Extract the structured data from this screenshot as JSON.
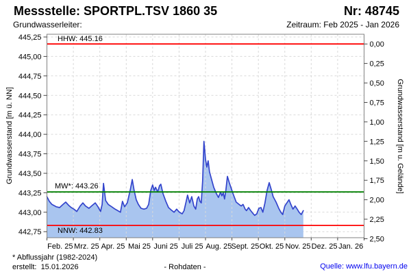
{
  "header": {
    "station_label": "Messstelle: SPORTPL.TSV 1860 35",
    "number_label": "Nr: 48745",
    "aquifer_label": "Grundwasserleiter:",
    "period_label": "Zeitraum: Feb 2025 - Jan 2026"
  },
  "footer": {
    "footnote": "* Abflussjahr (1982-2024)",
    "created": "erstellt:  15.01.2026",
    "center_note": "- Rohdaten -",
    "source": "Quelle: www.lfu.bayern.de"
  },
  "colors": {
    "area_fill": "#a9c5ef",
    "line": "#3344cc",
    "grid": "#d9d9d9",
    "border": "#808080",
    "tick": "#444444",
    "hhw_nnw": "#ff0000",
    "mw": "#008000",
    "source_link": "#0000ee"
  },
  "chart_data": {
    "type": "area",
    "title": "",
    "ylabel_left": "Grundwasserstand [m ü. NN]",
    "ylabel_right": "Grundwasserstand [m u. Gelände]",
    "x_labels": [
      "Feb. 25",
      "Mrz. 25",
      "Apr. 25",
      "Mai 25",
      "Juni 25",
      "Juli 25",
      "Aug. 25",
      "Sept. 25",
      "Okt. 25",
      "Nov. 25",
      "Dez. 25",
      "Jan. 26"
    ],
    "y_left_tick_values": [
      445.25,
      445.0,
      444.75,
      444.5,
      444.25,
      444.0,
      443.75,
      443.5,
      443.25,
      443.0,
      442.75
    ],
    "y_left_tick_labels": [
      "445,25",
      "445,00",
      "444,75",
      "444,50",
      "444,25",
      "444,00",
      "443,75",
      "443,50",
      "443,25",
      "443,00",
      "442,75"
    ],
    "y_right_tick_values": [
      0.0,
      0.25,
      0.5,
      0.75,
      1.0,
      1.25,
      1.5,
      1.75,
      2.0,
      2.25,
      2.5
    ],
    "y_right_tick_labels": [
      "0,00",
      "0,25",
      "0,50",
      "0,75",
      "1,00",
      "1,25",
      "1,50",
      "1,75",
      "2,00",
      "2,25",
      "2,50"
    ],
    "ylim_left": [
      442.67,
      445.29
    ],
    "ground_level_m_nn": 445.16,
    "grid": "dashed",
    "reference_lines": [
      {
        "name": "HHW",
        "label": "HHW: 445.16",
        "value": 445.16,
        "color": "#ff0000"
      },
      {
        "name": "MW",
        "label": "MW*: 443.26",
        "value": 443.26,
        "color": "#008000"
      },
      {
        "name": "NNW",
        "label": "NNW: 442.83",
        "value": 442.83,
        "color": "#ff0000"
      }
    ],
    "series": [
      {
        "name": "Grundwasserstand Rohdaten",
        "x_unit": "months_since_feb_2025",
        "points": [
          [
            0.0,
            443.2
          ],
          [
            0.09,
            443.14
          ],
          [
            0.19,
            443.1
          ],
          [
            0.35,
            443.07
          ],
          [
            0.48,
            443.06
          ],
          [
            0.61,
            443.1
          ],
          [
            0.71,
            443.13
          ],
          [
            0.82,
            443.09
          ],
          [
            0.92,
            443.06
          ],
          [
            1.02,
            443.04
          ],
          [
            1.13,
            443.01
          ],
          [
            1.26,
            443.08
          ],
          [
            1.36,
            443.12
          ],
          [
            1.46,
            443.08
          ],
          [
            1.59,
            443.05
          ],
          [
            1.72,
            443.09
          ],
          [
            1.83,
            443.12
          ],
          [
            1.93,
            443.07
          ],
          [
            2.03,
            443.01
          ],
          [
            2.09,
            443.1
          ],
          [
            2.14,
            443.37
          ],
          [
            2.22,
            443.15
          ],
          [
            2.32,
            443.1
          ],
          [
            2.45,
            443.07
          ],
          [
            2.58,
            443.04
          ],
          [
            2.68,
            443.02
          ],
          [
            2.78,
            443.0
          ],
          [
            2.86,
            443.14
          ],
          [
            2.94,
            443.07
          ],
          [
            3.04,
            443.12
          ],
          [
            3.15,
            443.28
          ],
          [
            3.23,
            443.42
          ],
          [
            3.3,
            443.28
          ],
          [
            3.38,
            443.16
          ],
          [
            3.46,
            443.1
          ],
          [
            3.56,
            443.05
          ],
          [
            3.67,
            443.04
          ],
          [
            3.77,
            443.05
          ],
          [
            3.85,
            443.1
          ],
          [
            3.93,
            443.28
          ],
          [
            4.0,
            443.35
          ],
          [
            4.06,
            443.28
          ],
          [
            4.11,
            443.32
          ],
          [
            4.19,
            443.26
          ],
          [
            4.26,
            443.34
          ],
          [
            4.31,
            443.36
          ],
          [
            4.39,
            443.24
          ],
          [
            4.5,
            443.14
          ],
          [
            4.6,
            443.06
          ],
          [
            4.7,
            443.03
          ],
          [
            4.81,
            443.0
          ],
          [
            4.91,
            443.04
          ],
          [
            5.01,
            443.0
          ],
          [
            5.12,
            442.98
          ],
          [
            5.19,
            443.02
          ],
          [
            5.27,
            443.14
          ],
          [
            5.32,
            443.22
          ],
          [
            5.4,
            443.12
          ],
          [
            5.48,
            443.2
          ],
          [
            5.56,
            443.08
          ],
          [
            5.63,
            443.04
          ],
          [
            5.69,
            443.17
          ],
          [
            5.74,
            443.2
          ],
          [
            5.79,
            443.14
          ],
          [
            5.84,
            443.12
          ],
          [
            5.89,
            443.4
          ],
          [
            5.94,
            443.91
          ],
          [
            6.0,
            443.68
          ],
          [
            6.05,
            443.58
          ],
          [
            6.1,
            443.66
          ],
          [
            6.15,
            443.52
          ],
          [
            6.23,
            443.42
          ],
          [
            6.31,
            443.32
          ],
          [
            6.41,
            443.24
          ],
          [
            6.49,
            443.19
          ],
          [
            6.57,
            443.26
          ],
          [
            6.62,
            443.21
          ],
          [
            6.67,
            443.25
          ],
          [
            6.72,
            443.17
          ],
          [
            6.77,
            443.28
          ],
          [
            6.83,
            443.46
          ],
          [
            6.9,
            443.38
          ],
          [
            6.98,
            443.3
          ],
          [
            7.04,
            443.24
          ],
          [
            7.16,
            443.13
          ],
          [
            7.27,
            443.1
          ],
          [
            7.35,
            443.08
          ],
          [
            7.42,
            443.1
          ],
          [
            7.5,
            443.04
          ],
          [
            7.55,
            443.02
          ],
          [
            7.63,
            443.06
          ],
          [
            7.71,
            443.02
          ],
          [
            7.78,
            442.99
          ],
          [
            7.86,
            442.96
          ],
          [
            7.94,
            442.98
          ],
          [
            8.02,
            443.05
          ],
          [
            8.1,
            443.06
          ],
          [
            8.17,
            443.0
          ],
          [
            8.25,
            443.12
          ],
          [
            8.33,
            443.28
          ],
          [
            8.41,
            443.38
          ],
          [
            8.48,
            443.3
          ],
          [
            8.56,
            443.2
          ],
          [
            8.67,
            443.13
          ],
          [
            8.77,
            443.05
          ],
          [
            8.85,
            443.0
          ],
          [
            8.92,
            442.97
          ],
          [
            9.0,
            443.08
          ],
          [
            9.08,
            443.12
          ],
          [
            9.16,
            443.16
          ],
          [
            9.23,
            443.1
          ],
          [
            9.31,
            443.04
          ],
          [
            9.39,
            443.08
          ],
          [
            9.47,
            443.04
          ],
          [
            9.54,
            443.0
          ],
          [
            9.62,
            442.97
          ],
          [
            9.7,
            443.02
          ]
        ]
      }
    ]
  }
}
